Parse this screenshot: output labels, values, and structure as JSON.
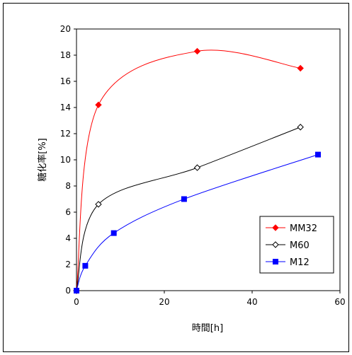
{
  "chart_data": {
    "type": "line",
    "title": "",
    "xlabel": "時間[h]",
    "ylabel": "糖化率[%]",
    "xlim": [
      0,
      60
    ],
    "ylim": [
      0,
      20
    ],
    "xticks": [
      0,
      20,
      40,
      60
    ],
    "yticks": [
      0,
      2,
      4,
      6,
      8,
      10,
      12,
      14,
      16,
      18,
      20
    ],
    "grid": false,
    "legend_position": "lower-right",
    "smooth_lines": true,
    "series": [
      {
        "name": "MM32",
        "color": "#ff0000",
        "marker": "filled-diamond",
        "x": [
          0,
          5,
          27.5,
          51
        ],
        "y": [
          0,
          14.2,
          18.3,
          17.0
        ]
      },
      {
        "name": "M60",
        "color": "#000000",
        "marker": "open-diamond",
        "x": [
          0,
          5,
          27.5,
          51
        ],
        "y": [
          0,
          6.6,
          9.4,
          12.5
        ]
      },
      {
        "name": "M12",
        "color": "#0000ff",
        "marker": "filled-square",
        "x": [
          0,
          2,
          8.5,
          24.5,
          55
        ],
        "y": [
          0,
          1.9,
          4.4,
          7.0,
          10.4
        ]
      }
    ]
  }
}
